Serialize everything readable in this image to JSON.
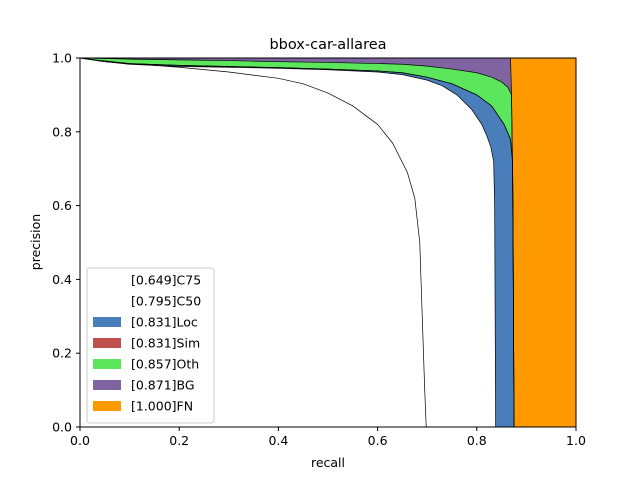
{
  "chart_data": {
    "type": "area",
    "title": "bbox-car-allarea",
    "xlabel": "recall",
    "ylabel": "precision",
    "xlim": [
      0,
      1
    ],
    "ylim": [
      0,
      1
    ],
    "x_ticks": [
      "0.0",
      "0.2",
      "0.4",
      "0.6",
      "0.8",
      "1.0"
    ],
    "y_ticks": [
      "0.0",
      "0.2",
      "0.4",
      "0.6",
      "0.8",
      "1.0"
    ],
    "grid": false,
    "legend_position": "lower-left",
    "series": [
      {
        "name": "[0.649]C75",
        "color": "#ffffff",
        "points": [
          [
            0,
            1.0
          ],
          [
            0.03,
            0.995
          ],
          [
            0.1,
            0.985
          ],
          [
            0.2,
            0.975
          ],
          [
            0.3,
            0.962
          ],
          [
            0.4,
            0.945
          ],
          [
            0.45,
            0.93
          ],
          [
            0.5,
            0.905
          ],
          [
            0.55,
            0.87
          ],
          [
            0.6,
            0.82
          ],
          [
            0.63,
            0.77
          ],
          [
            0.66,
            0.69
          ],
          [
            0.675,
            0.62
          ],
          [
            0.685,
            0.5
          ],
          [
            0.69,
            0.3
          ],
          [
            0.695,
            0.1
          ],
          [
            0.698,
            0.0
          ]
        ]
      },
      {
        "name": "[0.795]C50",
        "color": "#ffffff",
        "points": [
          [
            0,
            1.0
          ],
          [
            0.05,
            0.99
          ],
          [
            0.1,
            0.983
          ],
          [
            0.2,
            0.977
          ],
          [
            0.3,
            0.975
          ],
          [
            0.4,
            0.972
          ],
          [
            0.5,
            0.968
          ],
          [
            0.6,
            0.962
          ],
          [
            0.65,
            0.955
          ],
          [
            0.7,
            0.94
          ],
          [
            0.73,
            0.925
          ],
          [
            0.76,
            0.9
          ],
          [
            0.79,
            0.86
          ],
          [
            0.81,
            0.82
          ],
          [
            0.82,
            0.79
          ],
          [
            0.828,
            0.76
          ],
          [
            0.834,
            0.72
          ],
          [
            0.836,
            0.6
          ],
          [
            0.837,
            0.3
          ],
          [
            0.838,
            0.0
          ]
        ]
      },
      {
        "name": "[0.831]Loc",
        "color": "#4a7ebb",
        "points": [
          [
            0,
            1.0
          ],
          [
            0.05,
            0.99
          ],
          [
            0.1,
            0.985
          ],
          [
            0.2,
            0.98
          ],
          [
            0.3,
            0.977
          ],
          [
            0.4,
            0.974
          ],
          [
            0.5,
            0.97
          ],
          [
            0.6,
            0.965
          ],
          [
            0.65,
            0.96
          ],
          [
            0.7,
            0.948
          ],
          [
            0.75,
            0.93
          ],
          [
            0.8,
            0.9
          ],
          [
            0.83,
            0.87
          ],
          [
            0.855,
            0.82
          ],
          [
            0.868,
            0.78
          ],
          [
            0.872,
            0.72
          ],
          [
            0.873,
            0.6
          ],
          [
            0.874,
            0.3
          ],
          [
            0.875,
            0.0
          ]
        ]
      },
      {
        "name": "[0.831]Sim",
        "color": "#c0504d",
        "points": [
          [
            0,
            1.0
          ],
          [
            0.05,
            0.99
          ],
          [
            0.1,
            0.985
          ],
          [
            0.2,
            0.98
          ],
          [
            0.3,
            0.977
          ],
          [
            0.4,
            0.974
          ],
          [
            0.5,
            0.97
          ],
          [
            0.6,
            0.965
          ],
          [
            0.65,
            0.96
          ],
          [
            0.7,
            0.948
          ],
          [
            0.75,
            0.93
          ],
          [
            0.8,
            0.9
          ],
          [
            0.83,
            0.87
          ],
          [
            0.855,
            0.82
          ],
          [
            0.868,
            0.78
          ],
          [
            0.872,
            0.72
          ],
          [
            0.873,
            0.6
          ],
          [
            0.874,
            0.3
          ],
          [
            0.875,
            0.0
          ]
        ]
      },
      {
        "name": "[0.857]Oth",
        "color": "#5ce65c",
        "points": [
          [
            0,
            1.0
          ],
          [
            0.1,
            0.997
          ],
          [
            0.2,
            0.995
          ],
          [
            0.3,
            0.993
          ],
          [
            0.4,
            0.99
          ],
          [
            0.5,
            0.988
          ],
          [
            0.6,
            0.985
          ],
          [
            0.65,
            0.983
          ],
          [
            0.7,
            0.978
          ],
          [
            0.75,
            0.97
          ],
          [
            0.8,
            0.96
          ],
          [
            0.83,
            0.948
          ],
          [
            0.85,
            0.935
          ],
          [
            0.863,
            0.92
          ],
          [
            0.87,
            0.9
          ],
          [
            0.872,
            0.7
          ],
          [
            0.874,
            0.3
          ],
          [
            0.875,
            0.0
          ]
        ]
      },
      {
        "name": "[0.871]BG",
        "color": "#8064a2",
        "points": [
          [
            0,
            1.0
          ],
          [
            0.2,
            1.0
          ],
          [
            0.4,
            1.0
          ],
          [
            0.6,
            1.0
          ],
          [
            0.8,
            1.0
          ],
          [
            0.868,
            1.0
          ],
          [
            0.87,
            0.9
          ],
          [
            0.872,
            0.7
          ],
          [
            0.874,
            0.3
          ],
          [
            0.875,
            0.0
          ]
        ]
      },
      {
        "name": "[1.000]FN",
        "color": "#ff9900",
        "points": [
          [
            0,
            1.0
          ],
          [
            1.0,
            1.0
          ],
          [
            1.0,
            0.0
          ]
        ]
      }
    ]
  }
}
